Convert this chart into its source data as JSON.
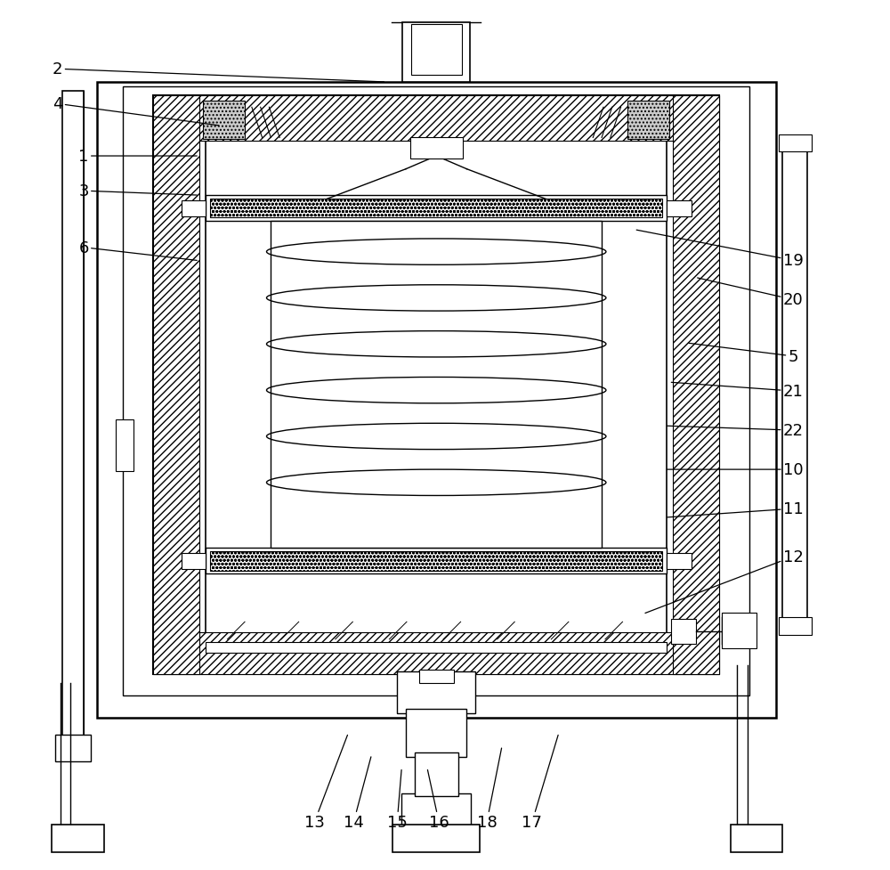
{
  "bg_color": "#ffffff",
  "line_color": "#000000",
  "fig_width": 10.0,
  "fig_height": 9.78,
  "label_targets": {
    "2": [
      0.055,
      0.92,
      0.43,
      0.905
    ],
    "4": [
      0.055,
      0.88,
      0.24,
      0.855
    ],
    "1": [
      0.085,
      0.82,
      0.215,
      0.82
    ],
    "3": [
      0.085,
      0.78,
      0.215,
      0.775
    ],
    "6": [
      0.085,
      0.715,
      0.215,
      0.7
    ],
    "19": [
      0.9,
      0.7,
      0.72,
      0.735
    ],
    "20": [
      0.9,
      0.655,
      0.79,
      0.68
    ],
    "5": [
      0.9,
      0.59,
      0.78,
      0.605
    ],
    "21": [
      0.9,
      0.55,
      0.76,
      0.56
    ],
    "22": [
      0.9,
      0.505,
      0.755,
      0.51
    ],
    "10": [
      0.9,
      0.46,
      0.755,
      0.46
    ],
    "11": [
      0.9,
      0.415,
      0.755,
      0.405
    ],
    "12": [
      0.9,
      0.36,
      0.73,
      0.295
    ],
    "13": [
      0.35,
      0.055,
      0.388,
      0.155
    ],
    "14": [
      0.395,
      0.055,
      0.415,
      0.13
    ],
    "15": [
      0.445,
      0.055,
      0.45,
      0.115
    ],
    "16": [
      0.493,
      0.055,
      0.48,
      0.115
    ],
    "18": [
      0.548,
      0.055,
      0.565,
      0.14
    ],
    "17": [
      0.6,
      0.055,
      0.63,
      0.155
    ]
  }
}
